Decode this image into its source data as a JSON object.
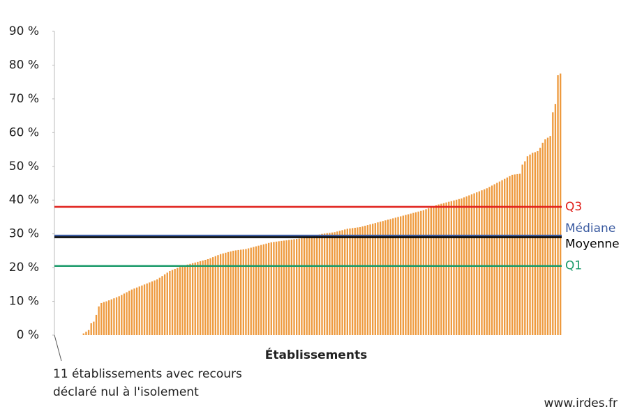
{
  "chart_data": {
    "type": "bar",
    "x_label": "Établissements",
    "values": [
      0,
      0,
      0,
      0,
      0,
      0,
      0,
      0,
      0,
      0,
      0,
      0.5,
      1,
      1.5,
      3.5,
      4,
      6,
      8.5,
      9.5,
      9.8,
      10,
      10.3,
      10.6,
      10.9,
      11.2,
      11.5,
      11.9,
      12.3,
      12.7,
      13.1,
      13.5,
      13.8,
      14.1,
      14.4,
      14.7,
      15,
      15.3,
      15.6,
      15.9,
      16.2,
      16.5,
      17,
      17.5,
      18,
      18.5,
      19,
      19.3,
      19.6,
      19.9,
      20.2,
      20.5,
      20.7,
      20.9,
      21.1,
      21.3,
      21.5,
      21.7,
      21.9,
      22.1,
      22.3,
      22.5,
      22.8,
      23.1,
      23.4,
      23.7,
      24,
      24.2,
      24.4,
      24.6,
      24.8,
      25,
      25.1,
      25.2,
      25.3,
      25.4,
      25.5,
      25.7,
      25.9,
      26.1,
      26.3,
      26.5,
      26.7,
      26.9,
      27.1,
      27.3,
      27.5,
      27.6,
      27.7,
      27.8,
      27.9,
      28,
      28.1,
      28.2,
      28.3,
      28.4,
      28.5,
      28.6,
      28.7,
      28.8,
      28.9,
      29,
      29.2,
      29.4,
      29.6,
      29.8,
      30,
      30.1,
      30.2,
      30.3,
      30.4,
      30.5,
      30.7,
      30.9,
      31.1,
      31.3,
      31.5,
      31.6,
      31.7,
      31.8,
      31.9,
      32,
      32.2,
      32.4,
      32.6,
      32.8,
      33,
      33.2,
      33.4,
      33.6,
      33.8,
      34,
      34.2,
      34.4,
      34.6,
      34.8,
      35,
      35.2,
      35.4,
      35.6,
      35.8,
      36,
      36.2,
      36.4,
      36.6,
      36.8,
      37,
      37.3,
      37.6,
      37.9,
      38.2,
      38.5,
      38.7,
      38.9,
      39.1,
      39.3,
      39.5,
      39.7,
      39.9,
      40.1,
      40.3,
      40.5,
      40.8,
      41.1,
      41.4,
      41.7,
      42,
      42.3,
      42.6,
      42.9,
      43.2,
      43.5,
      43.9,
      44.3,
      44.7,
      45.1,
      45.5,
      45.9,
      46.3,
      46.7,
      47.1,
      47.5,
      47.6,
      47.7,
      47.8,
      50.5,
      51.5,
      53,
      53.5,
      54,
      54.2,
      54.5,
      55.5,
      57,
      58,
      58.5,
      59,
      66,
      68.5,
      77,
      77.5
    ],
    "color": "#ee9a3e",
    "ylim": [
      0,
      90
    ],
    "yticks": [
      {
        "value": 0,
        "label": "0 %"
      },
      {
        "value": 10,
        "label": "10 %"
      },
      {
        "value": 20,
        "label": "20 %"
      },
      {
        "value": 30,
        "label": "30 %"
      },
      {
        "value": 40,
        "label": "40 %"
      },
      {
        "value": 50,
        "label": "50 %"
      },
      {
        "value": 60,
        "label": "60 %"
      },
      {
        "value": 70,
        "label": "70 %"
      },
      {
        "value": 80,
        "label": "80 %"
      },
      {
        "value": 90,
        "label": "90 %"
      }
    ],
    "reference_lines": [
      {
        "name": "Q3",
        "value": 38,
        "color": "#e0201b"
      },
      {
        "name": "Médiane",
        "value": 29.5,
        "color": "#3a5aa0"
      },
      {
        "name": "Moyenne",
        "value": 29,
        "color": "#000000"
      },
      {
        "name": "Q1",
        "value": 20.5,
        "color": "#1a9a6a"
      }
    ],
    "annotation": [
      "11 établissements avec recours",
      "déclaré nul à l'isolement"
    ],
    "source": "www.irdes.fr"
  }
}
